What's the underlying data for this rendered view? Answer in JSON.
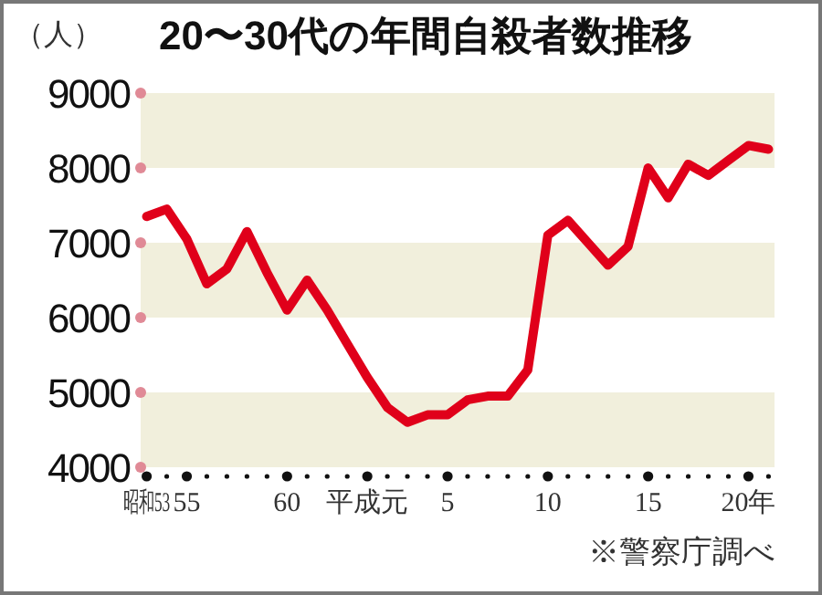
{
  "chart_data": {
    "type": "line",
    "title": "20〜30代の年間自殺者数推移",
    "ylabel": "（人）",
    "annotations": [
      "※警察庁調べ"
    ],
    "categories": [
      "昭和53",
      null,
      "55",
      null,
      null,
      null,
      null,
      "60",
      null,
      null,
      null,
      "平成元",
      null,
      null,
      null,
      "5",
      null,
      null,
      null,
      null,
      "10",
      null,
      null,
      null,
      null,
      "15",
      null,
      null,
      null,
      null,
      "20年",
      null
    ],
    "series": [
      {
        "color": "#e0001a",
        "values": [
          7350,
          7450,
          7050,
          6450,
          6650,
          7150,
          6600,
          6100,
          6500,
          6100,
          5650,
          5200,
          4800,
          4600,
          4700,
          4700,
          4900,
          4950,
          4950,
          5300,
          7100,
          7300,
          7000,
          6700,
          6950,
          8000,
          7600,
          8050,
          7900,
          8100,
          8300,
          8250
        ]
      }
    ],
    "ylim": [
      4000,
      9000
    ],
    "yticks": [
      4000,
      5000,
      6000,
      7000,
      8000,
      9000
    ],
    "bands": [
      {
        "axis": "y",
        "from": 4000,
        "to": 5000,
        "color": "#f1efdc"
      },
      {
        "axis": "y",
        "from": 6000,
        "to": 7000,
        "color": "#f1efdc"
      },
      {
        "axis": "y",
        "from": 8000,
        "to": 9000,
        "color": "#f1efdc"
      }
    ],
    "line_style": "solid",
    "marker": "none"
  }
}
